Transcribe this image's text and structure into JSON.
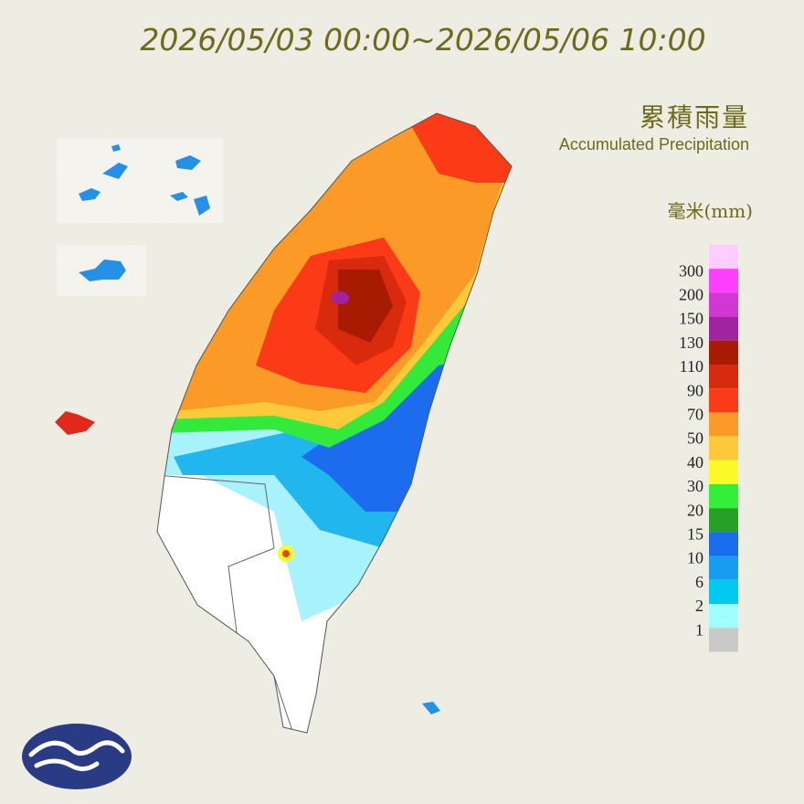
{
  "header": {
    "title": "2026/05/03 00:00~2026/05/06 10:00",
    "name_zh": "累積雨量",
    "name_en": "Accumulated Precipitation",
    "unit": "毫米(mm)"
  },
  "legend": {
    "labels": [
      300,
      200,
      150,
      130,
      110,
      90,
      70,
      50,
      40,
      30,
      20,
      15,
      10,
      6,
      2,
      1
    ],
    "colors": [
      "#fdcdfd",
      "#fd3efd",
      "#d137d5",
      "#a0239f",
      "#a81b03",
      "#d82a0d",
      "#fb3a18",
      "#fb9a26",
      "#fcc93a",
      "#fbfa28",
      "#34ef3a",
      "#26a125",
      "#1a6cef",
      "#179ef0",
      "#02c9ef",
      "#9efffd",
      "#c9c9c9"
    ]
  }
}
